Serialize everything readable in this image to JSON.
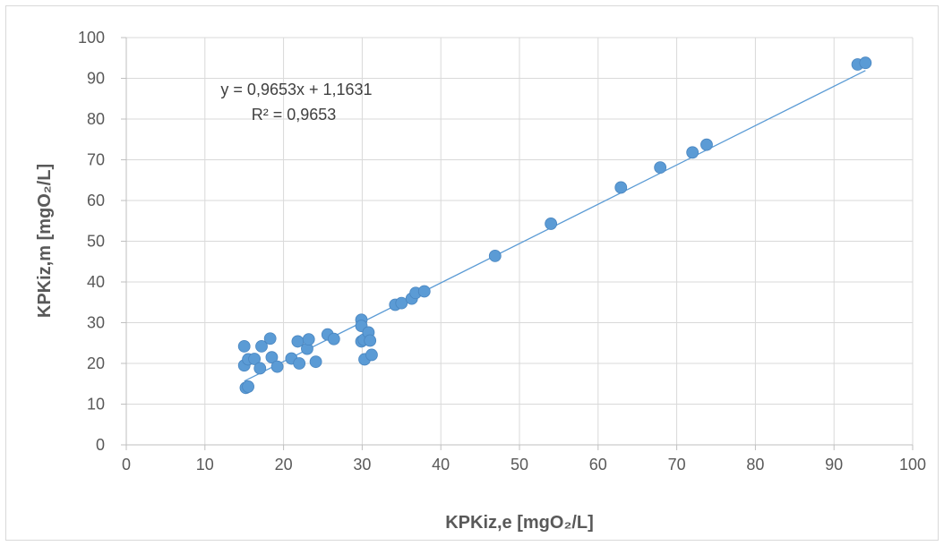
{
  "chart_data": {
    "type": "scatter",
    "xlabel": "KPKiz,e [mgO₂/L]",
    "ylabel": "KPKiz,m [mgO₂/L]",
    "xlim": [
      0,
      100
    ],
    "ylim": [
      0,
      100
    ],
    "x_ticks": [
      "0",
      "10",
      "20",
      "30",
      "40",
      "50",
      "60",
      "70",
      "80",
      "90",
      "100"
    ],
    "y_ticks": [
      "0",
      "10",
      "20",
      "30",
      "40",
      "50",
      "60",
      "70",
      "80",
      "90",
      "100"
    ],
    "grid": true,
    "legend": "none",
    "marker_color": "#5b9bd5",
    "trendline_color": "#5b9bd5",
    "trendline": {
      "slope": 0.9653,
      "intercept": 1.1631,
      "x_range": [
        15,
        94
      ]
    },
    "equation_text": "y = 0,9653x + 1,1631",
    "r2_text": "R² = 0,9653",
    "series": [
      {
        "points": [
          [
            15.0,
            24.2
          ],
          [
            15.0,
            19.5
          ],
          [
            15.5,
            21.0
          ],
          [
            15.2,
            14.0
          ],
          [
            15.5,
            14.3
          ],
          [
            16.3,
            21.1
          ],
          [
            17.0,
            18.8
          ],
          [
            17.2,
            24.2
          ],
          [
            18.3,
            26.1
          ],
          [
            18.5,
            21.5
          ],
          [
            19.2,
            19.2
          ],
          [
            21.0,
            21.2
          ],
          [
            21.8,
            25.4
          ],
          [
            22.0,
            20.0
          ],
          [
            23.0,
            23.6
          ],
          [
            23.2,
            25.9
          ],
          [
            24.1,
            20.4
          ],
          [
            25.6,
            27.1
          ],
          [
            26.4,
            26.0
          ],
          [
            29.9,
            30.7
          ],
          [
            29.9,
            29.2
          ],
          [
            29.9,
            25.4
          ],
          [
            30.2,
            25.8
          ],
          [
            30.3,
            21.0
          ],
          [
            30.8,
            27.6
          ],
          [
            31.0,
            25.6
          ],
          [
            31.2,
            22.1
          ],
          [
            34.2,
            34.4
          ],
          [
            35.0,
            34.8
          ],
          [
            36.3,
            35.9
          ],
          [
            36.8,
            37.3
          ],
          [
            37.9,
            37.7
          ],
          [
            46.9,
            46.4
          ],
          [
            54.0,
            54.3
          ],
          [
            62.9,
            63.2
          ],
          [
            67.9,
            68.1
          ],
          [
            72.0,
            71.8
          ],
          [
            73.8,
            73.7
          ],
          [
            93.0,
            93.4
          ],
          [
            94.0,
            93.8
          ]
        ]
      }
    ]
  }
}
